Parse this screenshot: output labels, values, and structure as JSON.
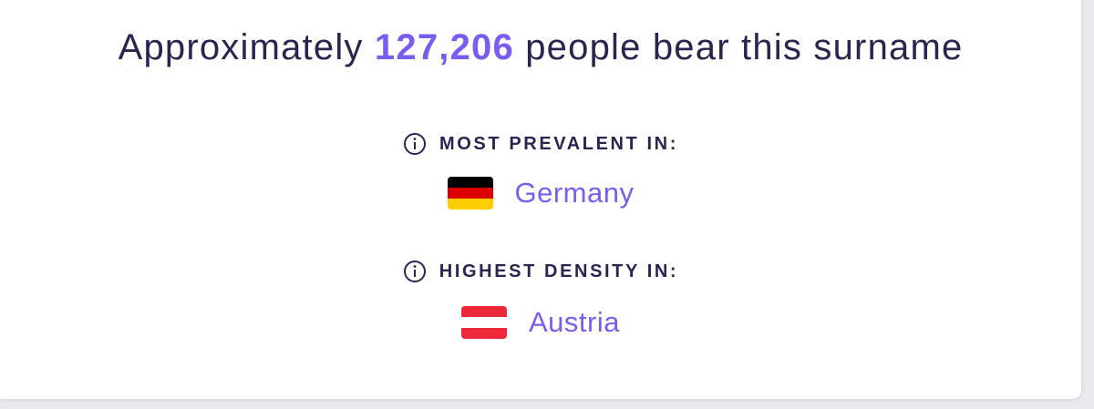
{
  "headline": {
    "prefix": "Approximately ",
    "count": "127,206",
    "suffix": " people bear this surname"
  },
  "prevalent": {
    "label": "MOST PREVALENT IN:",
    "country": "Germany",
    "flag_colors": [
      "#000000",
      "#dd0000",
      "#ffce00"
    ]
  },
  "density": {
    "label": "HIGHEST DENSITY IN:",
    "country": "Austria",
    "flag_colors": [
      "#ed2939",
      "#ffffff",
      "#ed2939"
    ]
  },
  "colors": {
    "accent": "#7b5cf0",
    "text": "#2a2450"
  }
}
